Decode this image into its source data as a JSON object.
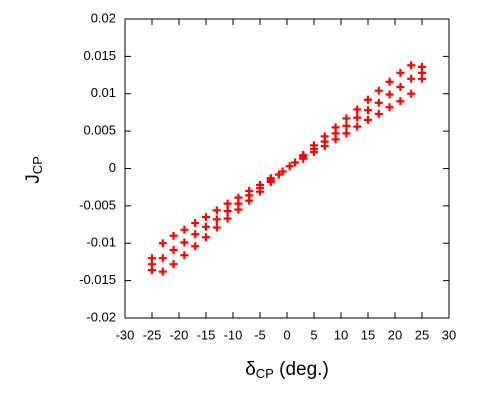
{
  "chart_data": {
    "type": "scatter",
    "color": "#ff0000",
    "xlabel": [
      "δ",
      "CP",
      " (deg.)"
    ],
    "ylabel": [
      "J",
      "CP"
    ],
    "xlim": [
      -30,
      30
    ],
    "xticks": [
      -30,
      -25,
      -20,
      -15,
      -10,
      -5,
      0,
      5,
      10,
      15,
      20,
      25,
      30
    ],
    "ylim": [
      -0.02,
      0.02
    ],
    "yticks": [
      -0.02,
      -0.015,
      -0.01,
      -0.005,
      0,
      0.005,
      0.01,
      0.015,
      0.02
    ],
    "x": [
      -1.5,
      -0.8,
      0.5,
      1.5,
      3,
      3,
      3,
      5,
      5,
      5,
      7,
      7,
      7,
      9,
      9,
      9,
      11,
      11,
      11,
      13,
      13,
      13,
      15,
      15,
      15,
      17,
      17,
      17,
      19,
      19,
      19,
      21,
      21,
      21,
      23,
      23,
      23,
      25,
      25,
      25,
      -3,
      -3,
      -3,
      -5,
      -5,
      -5,
      -7,
      -7,
      -7,
      -9,
      -9,
      -9,
      -11,
      -11,
      -11,
      -13,
      -13,
      -13,
      -15,
      -15,
      -15,
      -17,
      -17,
      -17,
      -19,
      -19,
      -19,
      -21,
      -21,
      -21,
      -23,
      -23,
      -23,
      -25,
      -25,
      -25
    ],
    "values": [
      -0.0008,
      -0.0004,
      0.0003,
      0.0008,
      0.0016,
      0.0018,
      0.0013,
      0.0026,
      0.0031,
      0.0022,
      0.0036,
      0.0043,
      0.003,
      0.0047,
      0.0055,
      0.0039,
      0.0057,
      0.0067,
      0.0047,
      0.0068,
      0.0079,
      0.0056,
      0.0078,
      0.0092,
      0.0065,
      0.0088,
      0.0104,
      0.0073,
      0.0099,
      0.0116,
      0.0082,
      0.0109,
      0.0128,
      0.009,
      0.012,
      0.0138,
      0.01,
      0.0128,
      0.0136,
      0.012,
      -0.0016,
      -0.0018,
      -0.0013,
      -0.0026,
      -0.0031,
      -0.0022,
      -0.0036,
      -0.0043,
      -0.003,
      -0.0047,
      -0.0055,
      -0.0039,
      -0.0057,
      -0.0067,
      -0.0047,
      -0.0068,
      -0.0079,
      -0.0056,
      -0.0078,
      -0.0092,
      -0.0065,
      -0.0088,
      -0.0104,
      -0.0073,
      -0.0099,
      -0.0116,
      -0.0082,
      -0.0109,
      -0.0128,
      -0.009,
      -0.012,
      -0.0138,
      -0.01,
      -0.0128,
      -0.0136,
      -0.012
    ]
  }
}
